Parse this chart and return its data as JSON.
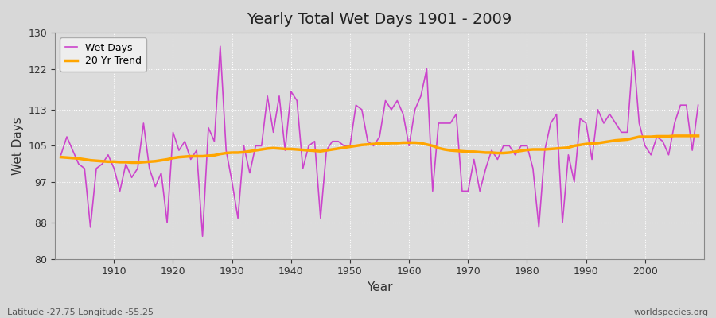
{
  "title": "Yearly Total Wet Days 1901 - 2009",
  "xlabel": "Year",
  "ylabel": "Wet Days",
  "footnote_left": "Latitude -27.75 Longitude -55.25",
  "footnote_right": "worldspecies.org",
  "line_color": "#cc44cc",
  "trend_color": "#FFA500",
  "bg_color": "#d8d8d8",
  "plot_bg_color": "#dcdcdc",
  "ylim": [
    80,
    130
  ],
  "yticks": [
    80,
    88,
    97,
    105,
    113,
    122,
    130
  ],
  "years": [
    1901,
    1902,
    1903,
    1904,
    1905,
    1906,
    1907,
    1908,
    1909,
    1910,
    1911,
    1912,
    1913,
    1914,
    1915,
    1916,
    1917,
    1918,
    1919,
    1920,
    1921,
    1922,
    1923,
    1924,
    1925,
    1926,
    1927,
    1928,
    1929,
    1930,
    1931,
    1932,
    1933,
    1934,
    1935,
    1936,
    1937,
    1938,
    1939,
    1940,
    1941,
    1942,
    1943,
    1944,
    1945,
    1946,
    1947,
    1948,
    1949,
    1950,
    1951,
    1952,
    1953,
    1954,
    1955,
    1956,
    1957,
    1958,
    1959,
    1960,
    1961,
    1962,
    1963,
    1964,
    1965,
    1966,
    1967,
    1968,
    1969,
    1970,
    1971,
    1972,
    1973,
    1974,
    1975,
    1976,
    1977,
    1978,
    1979,
    1980,
    1981,
    1982,
    1983,
    1984,
    1985,
    1986,
    1987,
    1988,
    1989,
    1990,
    1991,
    1992,
    1993,
    1994,
    1995,
    1996,
    1997,
    1998,
    1999,
    2000,
    2001,
    2002,
    2003,
    2004,
    2005,
    2006,
    2007,
    2008,
    2009
  ],
  "wet_days": [
    103,
    107,
    104,
    101,
    100,
    87,
    100,
    101,
    103,
    100,
    95,
    101,
    98,
    100,
    110,
    100,
    96,
    99,
    88,
    108,
    104,
    106,
    102,
    104,
    85,
    109,
    106,
    127,
    104,
    97,
    89,
    105,
    99,
    105,
    105,
    116,
    108,
    116,
    104,
    117,
    115,
    100,
    105,
    106,
    89,
    104,
    106,
    106,
    105,
    105,
    114,
    113,
    106,
    105,
    107,
    115,
    113,
    115,
    112,
    105,
    113,
    116,
    122,
    95,
    110,
    110,
    110,
    112,
    95,
    95,
    102,
    95,
    100,
    104,
    102,
    105,
    105,
    103,
    105,
    105,
    100,
    87,
    104,
    110,
    112,
    88,
    103,
    97,
    111,
    110,
    102,
    113,
    110,
    112,
    110,
    108,
    108,
    126,
    110,
    105,
    103,
    107,
    106,
    103,
    110,
    114,
    114,
    104,
    114
  ],
  "trend": [
    102.5,
    102.4,
    102.3,
    102.2,
    102.0,
    101.8,
    101.7,
    101.6,
    101.5,
    101.5,
    101.4,
    101.4,
    101.3,
    101.3,
    101.4,
    101.5,
    101.6,
    101.8,
    102.0,
    102.3,
    102.5,
    102.6,
    102.7,
    102.7,
    102.7,
    102.8,
    102.9,
    103.2,
    103.4,
    103.5,
    103.5,
    103.6,
    103.8,
    104.0,
    104.2,
    104.4,
    104.5,
    104.4,
    104.3,
    104.3,
    104.2,
    104.1,
    104.0,
    103.9,
    103.8,
    104.0,
    104.2,
    104.4,
    104.6,
    104.8,
    105.0,
    105.2,
    105.3,
    105.4,
    105.5,
    105.5,
    105.6,
    105.6,
    105.7,
    105.7,
    105.7,
    105.6,
    105.3,
    105.0,
    104.5,
    104.2,
    104.0,
    103.9,
    103.8,
    103.7,
    103.7,
    103.6,
    103.5,
    103.5,
    103.4,
    103.4,
    103.5,
    103.7,
    103.9,
    104.1,
    104.2,
    104.2,
    104.2,
    104.3,
    104.4,
    104.5,
    104.6,
    105.0,
    105.2,
    105.4,
    105.5,
    105.6,
    105.8,
    106.0,
    106.2,
    106.3,
    106.4,
    106.7,
    107.0,
    107.0,
    107.0,
    107.1,
    107.1,
    107.1,
    107.2,
    107.2,
    107.2,
    107.2,
    107.2
  ]
}
